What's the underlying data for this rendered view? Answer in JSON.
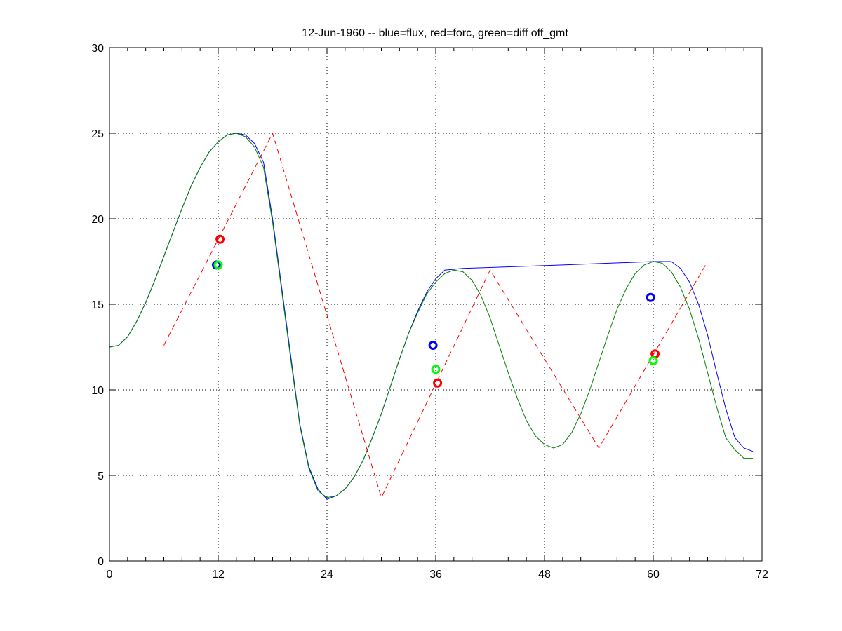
{
  "chart_data": {
    "type": "line",
    "title": "12-Jun-1960 -- blue=flux, red=forc, green=diff off_gmt",
    "xlabel": "",
    "ylabel": "",
    "xlim": [
      0,
      72
    ],
    "ylim": [
      0,
      30
    ],
    "xticks": [
      0,
      12,
      24,
      36,
      48,
      60,
      72
    ],
    "yticks": [
      0,
      5,
      10,
      15,
      20,
      25,
      30
    ],
    "xtick_labels": [
      "0",
      "12",
      "24",
      "36",
      "48",
      "60",
      "72"
    ],
    "ytick_labels": [
      "0",
      "5",
      "10",
      "15",
      "20",
      "25",
      "30"
    ],
    "grid": true,
    "minor_ticks_x_step": 2,
    "colors": {
      "blue": "#0000ff",
      "red": "#ff0000",
      "green": "#00ff00",
      "darkgreen": "#008000"
    },
    "series": [
      {
        "key": "flux",
        "color": "#0000ff",
        "style": "solid",
        "x": [
          0,
          1,
          2,
          3,
          4,
          5,
          6,
          7,
          8,
          9,
          10,
          11,
          12,
          13,
          14,
          15,
          16,
          17,
          18,
          19,
          20,
          21,
          22,
          23,
          24,
          25,
          26,
          27,
          28,
          29,
          30,
          31,
          32,
          33,
          34,
          35,
          36,
          37,
          38,
          39,
          50,
          60,
          62,
          63,
          64,
          65,
          66,
          67,
          68,
          69,
          70,
          71
        ],
        "y": [
          12.5,
          12.6,
          13.1,
          14.0,
          15.1,
          16.4,
          17.8,
          19.2,
          20.6,
          21.9,
          23.0,
          23.9,
          24.5,
          24.9,
          25.0,
          24.9,
          24.4,
          23.3,
          20.0,
          16.0,
          12.0,
          8.0,
          5.5,
          4.2,
          3.6,
          3.8,
          4.2,
          4.9,
          5.9,
          7.2,
          8.6,
          10.2,
          11.8,
          13.3,
          14.6,
          15.7,
          16.5,
          17.0,
          17.05,
          17.1,
          17.3,
          17.5,
          17.5,
          17.1,
          16.3,
          15.0,
          13.2,
          11.0,
          8.9,
          7.2,
          6.6,
          6.4
        ]
      },
      {
        "key": "diff",
        "color": "#008000",
        "style": "solid",
        "x": [
          0,
          1,
          2,
          3,
          4,
          5,
          6,
          7,
          8,
          9,
          10,
          11,
          12,
          13,
          14,
          15,
          16,
          17,
          18,
          19,
          20,
          21,
          22,
          23,
          24,
          25,
          26,
          27,
          28,
          29,
          30,
          31,
          32,
          33,
          34,
          35,
          36,
          37,
          38,
          39,
          40,
          41,
          42,
          43,
          44,
          45,
          46,
          47,
          48,
          49,
          50,
          51,
          52,
          53,
          54,
          55,
          56,
          57,
          58,
          59,
          60,
          61,
          62,
          63,
          64,
          65,
          66,
          67,
          68,
          69,
          70,
          71
        ],
        "y": [
          12.5,
          12.6,
          13.1,
          14.0,
          15.1,
          16.4,
          17.8,
          19.2,
          20.6,
          21.9,
          23.0,
          23.9,
          24.5,
          24.9,
          25.0,
          24.8,
          24.2,
          23.0,
          19.8,
          15.8,
          11.8,
          7.9,
          5.4,
          4.1,
          3.7,
          3.8,
          4.2,
          4.9,
          5.9,
          7.2,
          8.6,
          10.2,
          11.8,
          13.3,
          14.5,
          15.6,
          16.3,
          16.8,
          17.0,
          16.9,
          16.4,
          15.5,
          14.2,
          12.6,
          11.0,
          9.5,
          8.2,
          7.3,
          6.8,
          6.6,
          6.8,
          7.5,
          8.6,
          10.0,
          11.6,
          13.2,
          14.7,
          15.9,
          16.8,
          17.3,
          17.5,
          17.4,
          16.9,
          16.0,
          14.7,
          13.0,
          11.0,
          9.0,
          7.2,
          6.5,
          6.0,
          6.0
        ]
      },
      {
        "key": "forc",
        "color": "#ff0000",
        "style": "dashed",
        "x": [
          6,
          18,
          30,
          42,
          54,
          66
        ],
        "y": [
          12.6,
          25.0,
          3.7,
          17.0,
          6.6,
          17.5
        ]
      }
    ],
    "markers": [
      {
        "key": "flux",
        "color": "#0000ff",
        "points": [
          [
            11.8,
            17.3
          ],
          [
            35.7,
            12.6
          ],
          [
            59.7,
            15.4
          ]
        ]
      },
      {
        "key": "forc",
        "color": "#ff0000",
        "points": [
          [
            12.2,
            18.8
          ],
          [
            36.2,
            10.4
          ],
          [
            60.2,
            12.1
          ]
        ]
      },
      {
        "key": "diff",
        "color": "#00ff00",
        "points": [
          [
            12.0,
            17.3
          ],
          [
            36.0,
            11.2
          ],
          [
            60.0,
            11.7
          ]
        ]
      }
    ]
  }
}
